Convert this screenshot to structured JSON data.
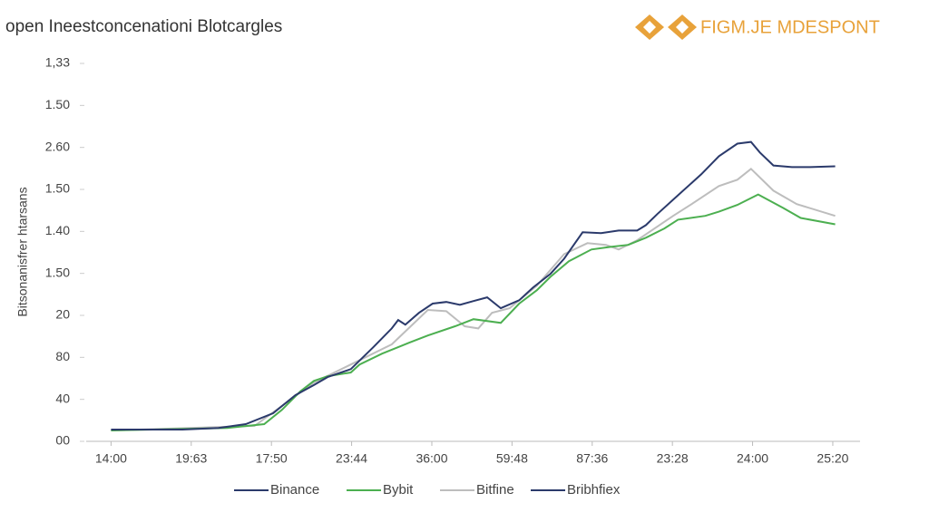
{
  "chart_data": {
    "type": "line",
    "title": "open Ineestconcenationi Blotcargles",
    "brand": "FIGM.JE MDESPONT",
    "y_label": "Bitsonanisfrer htarsans",
    "xlim": [
      -0.31,
      9.34
    ],
    "ylim": [
      0,
      9
    ],
    "xticks": [
      {
        "value": 0,
        "label": "14:00"
      },
      {
        "value": 1,
        "label": "19:63"
      },
      {
        "value": 2,
        "label": "17:50"
      },
      {
        "value": 3,
        "label": "23:44"
      },
      {
        "value": 4,
        "label": "36:00"
      },
      {
        "value": 5,
        "label": "59:48"
      },
      {
        "value": 6,
        "label": "87:36"
      },
      {
        "value": 7,
        "label": "23:28"
      },
      {
        "value": 8,
        "label": "24:00"
      },
      {
        "value": 9,
        "label": "25:20"
      }
    ],
    "yticks": [
      {
        "value": 0,
        "label": "00"
      },
      {
        "value": 1,
        "label": "40"
      },
      {
        "value": 2,
        "label": "80"
      },
      {
        "value": 3,
        "label": "20"
      },
      {
        "value": 4,
        "label": "1.50"
      },
      {
        "value": 5,
        "label": "1.40"
      },
      {
        "value": 6,
        "label": "1.50"
      },
      {
        "value": 7,
        "label": "2.60"
      },
      {
        "value": 8,
        "label": "1.50"
      },
      {
        "value": 9,
        "label": "1,33"
      }
    ],
    "series": [
      {
        "name": "Binance",
        "color": "#2b3a6b",
        "x": [
          0,
          0.89,
          1.34,
          1.68,
          2.02,
          2.3,
          2.53,
          2.7,
          2.99,
          3.27,
          3.5,
          3.58,
          3.67,
          3.84,
          4.01,
          4.18,
          4.35,
          4.52,
          4.69,
          4.86,
          5.09,
          5.26,
          5.48,
          5.65,
          5.88,
          6.11,
          6.33,
          6.56,
          6.67,
          6.81,
          7.07,
          7.36,
          7.58,
          7.81,
          7.98,
          8.09,
          8.26,
          8.49,
          8.72,
          9.03
        ],
        "values": [
          0.28,
          0.28,
          0.32,
          0.41,
          0.67,
          1.1,
          1.34,
          1.53,
          1.72,
          2.24,
          2.69,
          2.89,
          2.78,
          3.06,
          3.28,
          3.32,
          3.25,
          3.34,
          3.43,
          3.17,
          3.36,
          3.66,
          3.99,
          4.35,
          4.98,
          4.96,
          5.02,
          5.02,
          5.15,
          5.41,
          5.86,
          6.36,
          6.79,
          7.09,
          7.13,
          6.88,
          6.57,
          6.53,
          6.53,
          6.55
        ]
      },
      {
        "name": "Bybit",
        "color": "#4caf50",
        "x": [
          0,
          1.45,
          1.91,
          2.13,
          2.36,
          2.53,
          2.7,
          2.99,
          3.1,
          3.38,
          3.72,
          3.95,
          4.29,
          4.52,
          4.86,
          5.09,
          5.31,
          5.48,
          5.71,
          5.99,
          6.22,
          6.45,
          6.67,
          6.9,
          7.07,
          7.41,
          7.58,
          7.81,
          8.07,
          8.38,
          8.6,
          9.03
        ],
        "values": [
          0.26,
          0.32,
          0.41,
          0.75,
          1.19,
          1.44,
          1.55,
          1.64,
          1.83,
          2.09,
          2.35,
          2.52,
          2.74,
          2.91,
          2.82,
          3.28,
          3.6,
          3.92,
          4.29,
          4.57,
          4.63,
          4.68,
          4.85,
          5.07,
          5.28,
          5.37,
          5.47,
          5.63,
          5.88,
          5.56,
          5.32,
          5.17
        ]
      },
      {
        "name": "Bitfine",
        "color": "#bdbdbd",
        "x": [
          0,
          1.79,
          2.25,
          2.53,
          2.99,
          3.5,
          3.95,
          4.18,
          4.41,
          4.58,
          4.75,
          4.97,
          5.31,
          5.65,
          5.94,
          6.17,
          6.33,
          6.56,
          7.01,
          7.24,
          7.58,
          7.81,
          7.98,
          8.26,
          8.55,
          9.03
        ],
        "values": [
          0.26,
          0.37,
          1.01,
          1.4,
          1.83,
          2.31,
          3.13,
          3.1,
          2.74,
          2.69,
          3.06,
          3.17,
          3.71,
          4.46,
          4.72,
          4.68,
          4.57,
          4.79,
          5.37,
          5.65,
          6.08,
          6.23,
          6.49,
          5.97,
          5.65,
          5.37
        ]
      },
      {
        "name": "Bribhfiex",
        "color": "#2b3a6b",
        "x": [],
        "values": []
      }
    ]
  }
}
